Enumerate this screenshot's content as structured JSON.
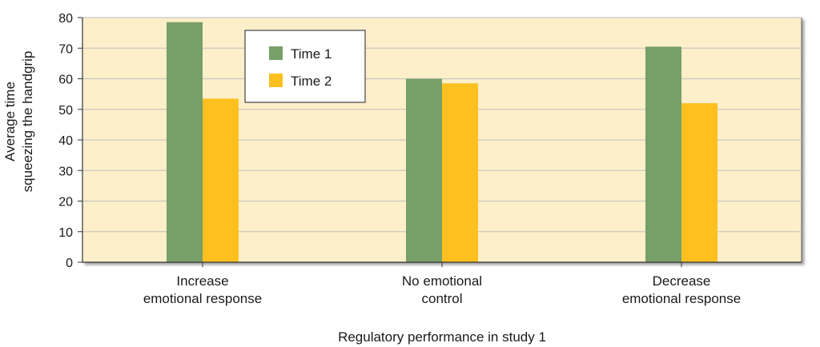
{
  "chart_data": {
    "type": "bar",
    "title": "",
    "xlabel": "Regulatory performance in study 1",
    "ylabel": [
      "Average time",
      "squeezing the handgrip"
    ],
    "ylim": [
      0,
      80
    ],
    "yticks": [
      0,
      10,
      20,
      30,
      40,
      50,
      60,
      70,
      80
    ],
    "grid": true,
    "categories": [
      [
        "Increase",
        "emotional response"
      ],
      [
        "No emotional",
        "control"
      ],
      [
        "Decrease",
        "emotional response"
      ]
    ],
    "series": [
      {
        "name": "Time 1",
        "color": "#779f68",
        "values": [
          78.5,
          60,
          70.5
        ]
      },
      {
        "name": "Time 2",
        "color": "#fec01f",
        "values": [
          53.5,
          58.5,
          52
        ]
      }
    ],
    "legend": {
      "position": "top-center"
    },
    "plot_background": "#fdefca",
    "grid_color": "#c8c8c0"
  }
}
